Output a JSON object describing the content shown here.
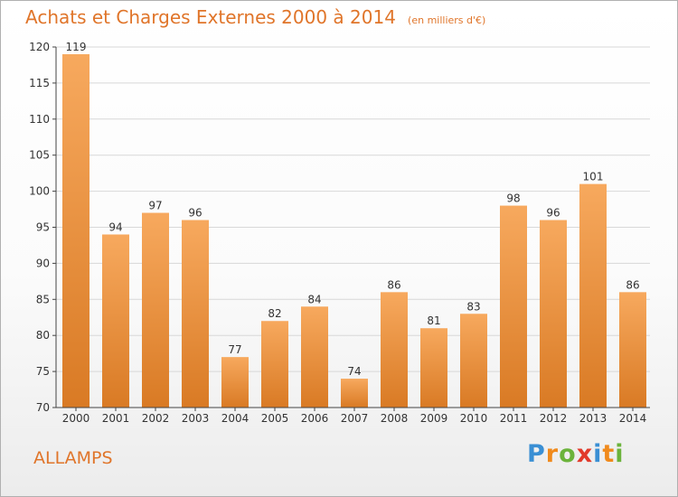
{
  "chart_data": {
    "type": "bar",
    "title": "Achats et Charges Externes 2000 à 2014",
    "unit": "(en milliers d'€)",
    "categories": [
      "2000",
      "2001",
      "2002",
      "2003",
      "2004",
      "2005",
      "2006",
      "2007",
      "2008",
      "2009",
      "2010",
      "2011",
      "2012",
      "2013",
      "2014"
    ],
    "values": [
      119,
      94,
      97,
      96,
      77,
      82,
      84,
      74,
      86,
      81,
      83,
      98,
      96,
      101,
      86
    ],
    "ylim": [
      70,
      120
    ],
    "yticks": [
      70,
      75,
      80,
      85,
      90,
      95,
      100,
      105,
      110,
      115,
      120
    ],
    "grid": true,
    "xlabel": "",
    "ylabel": ""
  },
  "location": "ALLAMPS",
  "brand": {
    "letters": [
      "P",
      "r",
      "o",
      "x",
      "i",
      "t",
      "i"
    ],
    "colors": [
      "#3a8fd4",
      "#f08a1c",
      "#6bb33b",
      "#e23a2a",
      "#3a8fd4",
      "#f08a1c",
      "#6bb33b"
    ]
  },
  "colors": {
    "accent": "#e0752a",
    "bar_light": "#f7a95e",
    "bar_dark": "#d97a24",
    "axis": "#444444",
    "grid": "#d8d8d8"
  }
}
